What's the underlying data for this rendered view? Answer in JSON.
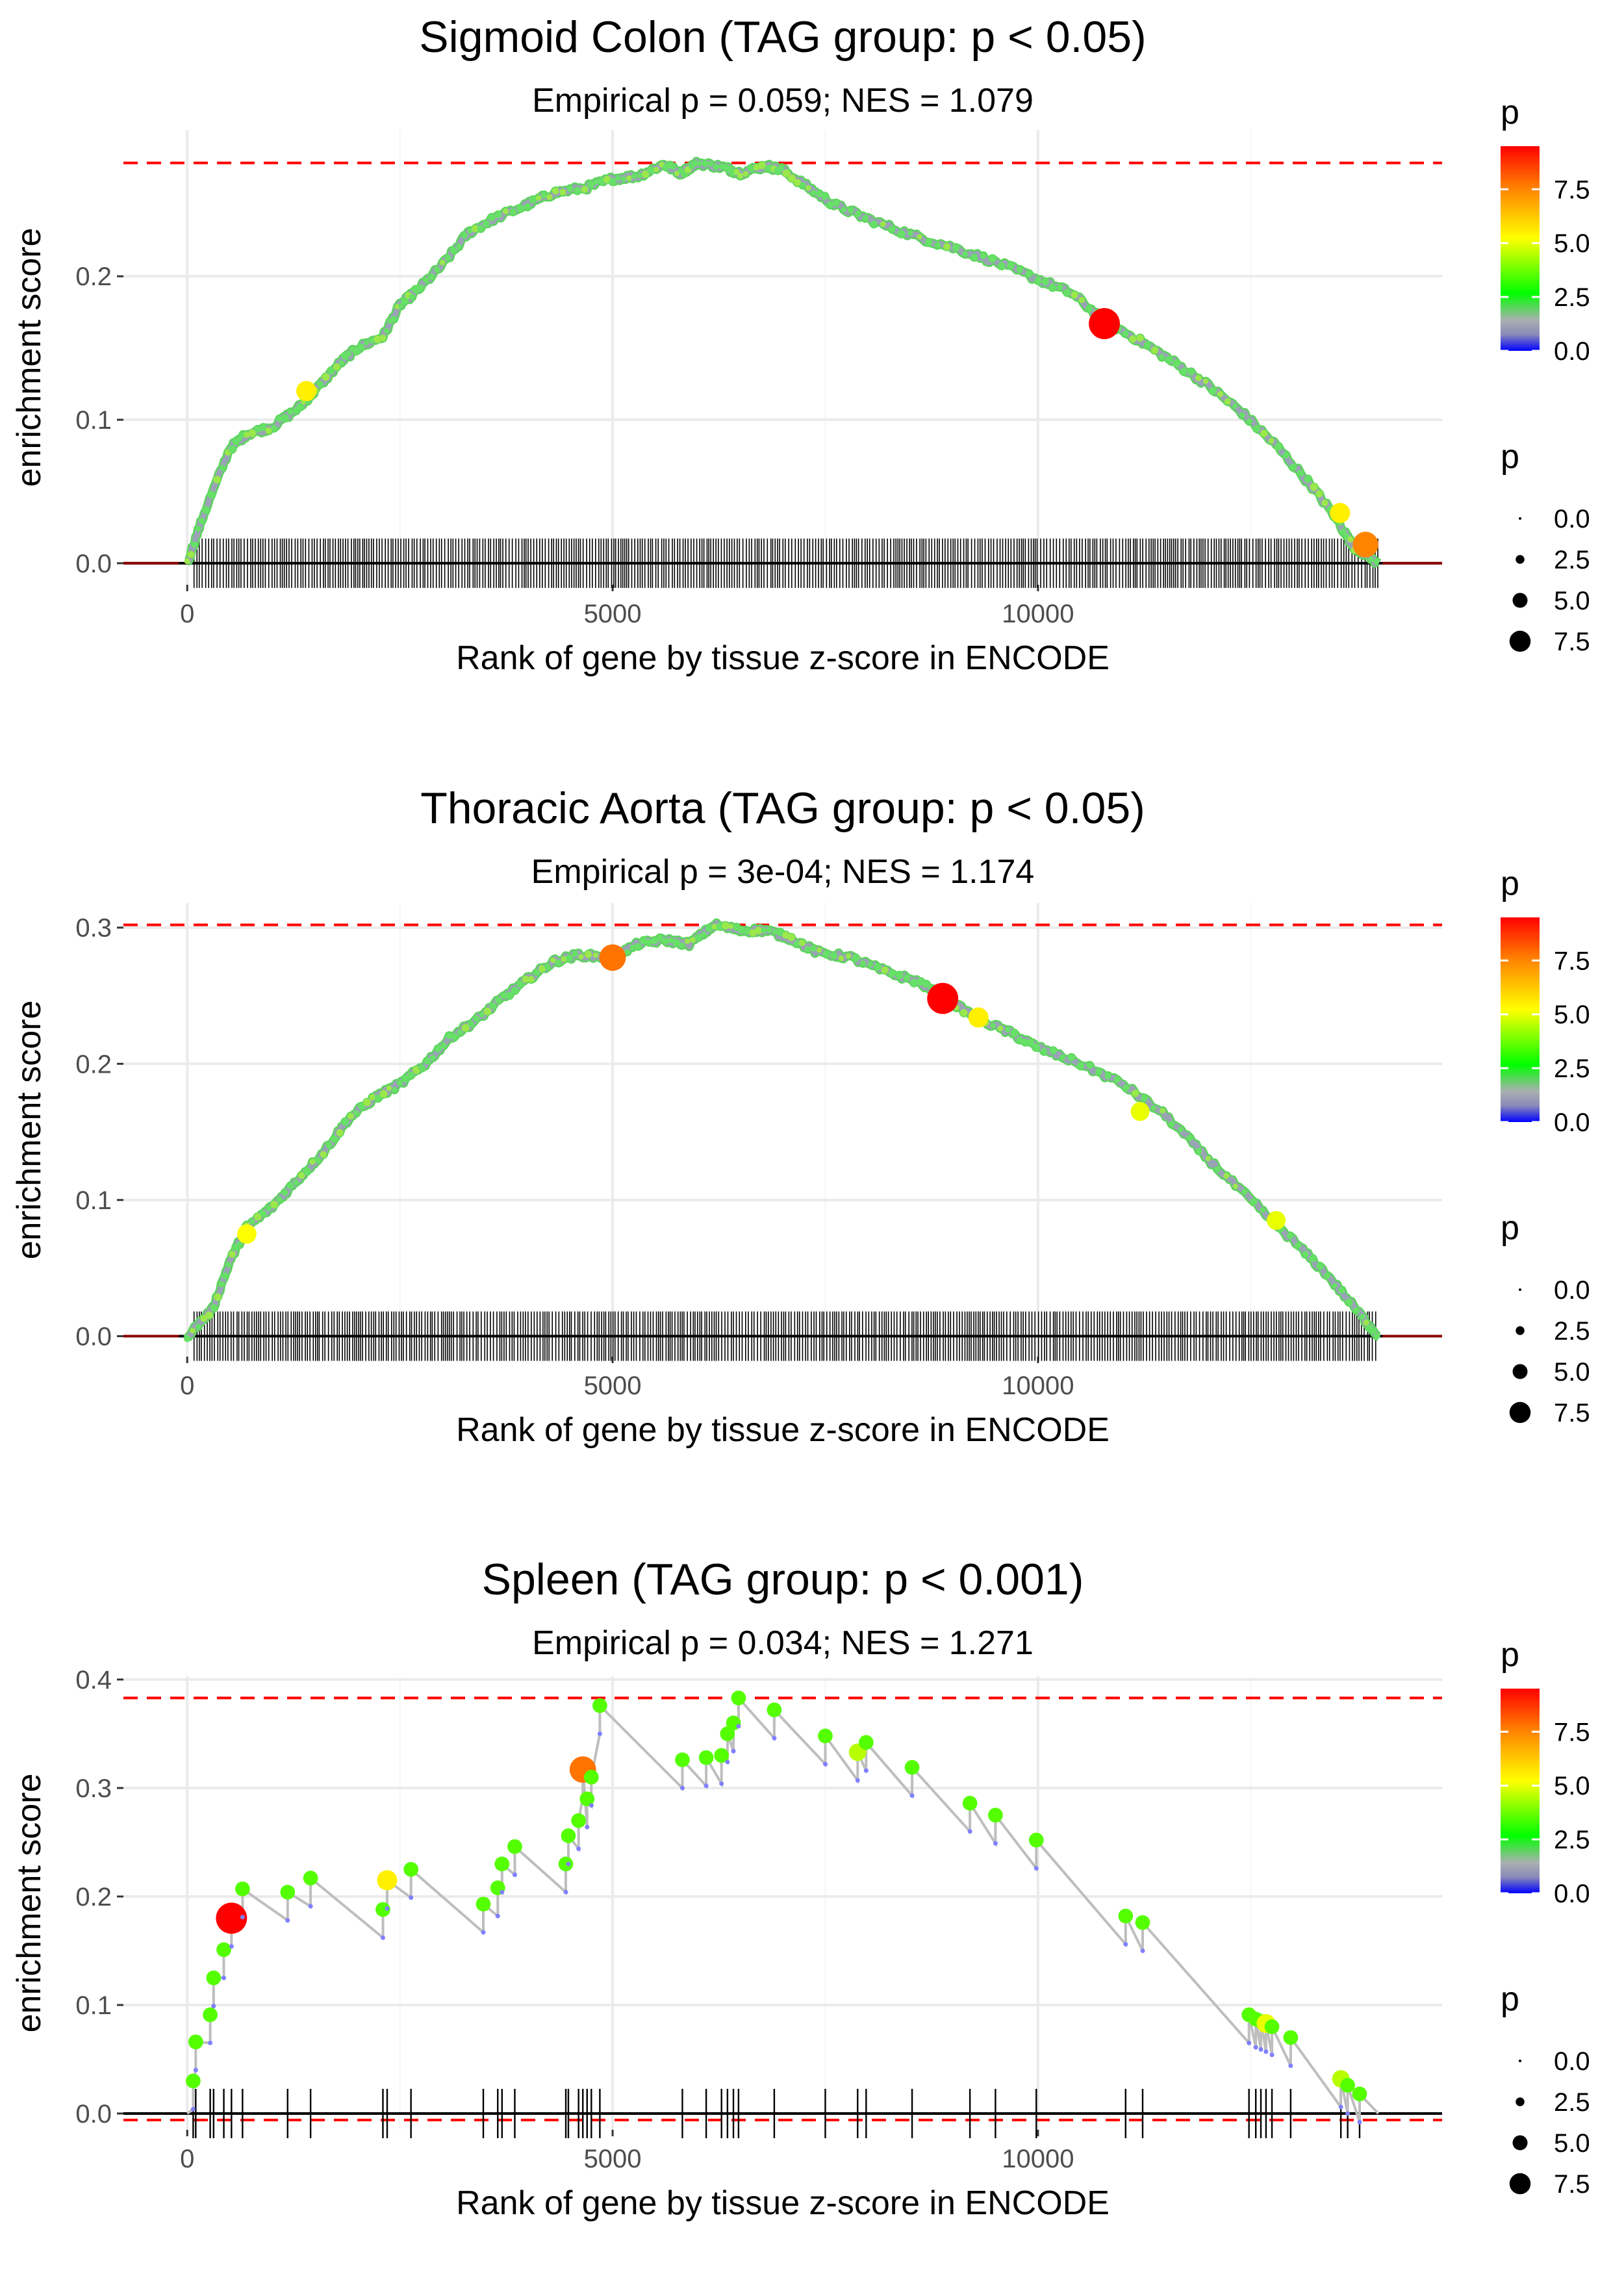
{
  "colors": {
    "max_line": "#ff0000",
    "es_curve": "#bebebe",
    "rug": "#000000",
    "grid": "#ebebeb",
    "gradient": [
      "#0000ff",
      "#8a8ab8",
      "#aab0b0",
      "#00ff00",
      "#ffff00",
      "#ff8000",
      "#ff0000"
    ]
  },
  "chart_data": [
    {
      "type": "line",
      "title": "Sigmoid Colon (TAG group: p < 0.05)",
      "subtitle": "Empirical p = 0.059; NES = 1.079",
      "xlabel": "Rank of gene by tissue z-score in ENCODE",
      "ylabel": "enrichment score",
      "xlim": [
        -750,
        14750
      ],
      "ylim": [
        -0.015,
        0.302
      ],
      "x_ticks": [
        0,
        5000,
        10000
      ],
      "x_tick_labels": [
        "0",
        "5000",
        "10000"
      ],
      "y_ticks": [
        0.0,
        0.1,
        0.2
      ],
      "y_tick_labels": [
        "0.0",
        "0.1",
        "0.2"
      ],
      "max_es": 0.279,
      "min_es": null,
      "n_genes": 14000,
      "dense": true,
      "es_curve": {
        "x": [
          0,
          200,
          500,
          700,
          1000,
          1300,
          1500,
          1800,
          2000,
          2300,
          2500,
          2700,
          3000,
          3300,
          3600,
          4000,
          4300,
          4700,
          5000,
          5300,
          5600,
          5800,
          6000,
          6300,
          6500,
          6800,
          7000,
          7300,
          7600,
          8000,
          8500,
          9000,
          9500,
          10000,
          10400,
          10800,
          11200,
          11600,
          12000,
          12400,
          12800,
          13200,
          13500,
          13700,
          14000
        ],
        "y": [
          0.0,
          0.035,
          0.08,
          0.09,
          0.095,
          0.108,
          0.12,
          0.14,
          0.15,
          0.158,
          0.18,
          0.19,
          0.208,
          0.23,
          0.24,
          0.25,
          0.258,
          0.262,
          0.268,
          0.27,
          0.278,
          0.272,
          0.279,
          0.276,
          0.272,
          0.277,
          0.274,
          0.262,
          0.25,
          0.24,
          0.229,
          0.22,
          0.21,
          0.198,
          0.188,
          0.168,
          0.155,
          0.14,
          0.124,
          0.105,
          0.082,
          0.055,
          0.032,
          0.012,
          0.0
        ]
      },
      "highlight_points": [
        {
          "x": 1400,
          "y": 0.12,
          "p": 5.5
        },
        {
          "x": 10780,
          "y": 0.167,
          "p": 9.5
        },
        {
          "x": 13550,
          "y": 0.035,
          "p": 5.5
        },
        {
          "x": 13850,
          "y": 0.013,
          "p": 7.5
        }
      ]
    },
    {
      "type": "line",
      "title": "Thoracic Aorta (TAG group: p < 0.05)",
      "subtitle": "Empirical p = 3e-04; NES = 1.174",
      "xlabel": "Rank of gene by tissue z-score in ENCODE",
      "ylabel": "enrichment score",
      "xlim": [
        -750,
        14750
      ],
      "ylim": [
        -0.015,
        0.318
      ],
      "x_ticks": [
        0,
        5000,
        10000
      ],
      "x_tick_labels": [
        "0",
        "5000",
        "10000"
      ],
      "y_ticks": [
        0.0,
        0.1,
        0.2,
        0.3
      ],
      "y_tick_labels": [
        "0.0",
        "0.1",
        "0.2",
        "0.3"
      ],
      "max_es": 0.302,
      "min_es": null,
      "n_genes": 14000,
      "dense": true,
      "es_curve": {
        "x": [
          0,
          300,
          500,
          700,
          1000,
          1300,
          1600,
          1900,
          2200,
          2500,
          2800,
          3100,
          3400,
          3700,
          4000,
          4300,
          4600,
          5000,
          5300,
          5600,
          5900,
          6200,
          6500,
          6800,
          7100,
          7400,
          7800,
          8200,
          8600,
          8900,
          9300,
          9700,
          10000,
          10500,
          11000,
          11500,
          12000,
          12500,
          13000,
          13400,
          13800,
          14000
        ],
        "y": [
          0.0,
          0.02,
          0.055,
          0.08,
          0.095,
          0.115,
          0.135,
          0.16,
          0.175,
          0.185,
          0.2,
          0.22,
          0.232,
          0.248,
          0.262,
          0.275,
          0.28,
          0.278,
          0.288,
          0.291,
          0.288,
          0.302,
          0.298,
          0.298,
          0.292,
          0.282,
          0.278,
          0.268,
          0.26,
          0.248,
          0.233,
          0.222,
          0.212,
          0.2,
          0.185,
          0.162,
          0.13,
          0.1,
          0.07,
          0.045,
          0.015,
          0.0
        ]
      },
      "highlight_points": [
        {
          "x": 700,
          "y": 0.075,
          "p": 5.2
        },
        {
          "x": 5000,
          "y": 0.278,
          "p": 7.8
        },
        {
          "x": 8880,
          "y": 0.248,
          "p": 9.5
        },
        {
          "x": 9300,
          "y": 0.234,
          "p": 5.5
        },
        {
          "x": 11200,
          "y": 0.165,
          "p": 5.0
        },
        {
          "x": 12800,
          "y": 0.085,
          "p": 5.0
        }
      ]
    },
    {
      "type": "line",
      "title": "Spleen (TAG group: p < 0.001)",
      "subtitle": "Empirical p = 0.034; NES = 1.271",
      "xlabel": "Rank of gene by tissue z-score in ENCODE",
      "ylabel": "enrichment score",
      "xlim": [
        -750,
        14750
      ],
      "ylim": [
        -0.015,
        0.403
      ],
      "x_ticks": [
        0,
        5000,
        10000
      ],
      "x_tick_labels": [
        "0",
        "5000",
        "10000"
      ],
      "y_ticks": [
        0.0,
        0.1,
        0.2,
        0.3,
        0.4
      ],
      "y_tick_labels": [
        "0.0",
        "0.1",
        "0.2",
        "0.3",
        "0.4"
      ],
      "max_es": 0.383,
      "min_es": -0.006,
      "n_genes": 14000,
      "dense": false,
      "hits": [
        {
          "x": 70,
          "y": 0.03,
          "p": 3.5
        },
        {
          "x": 100,
          "y": 0.066,
          "p": 3.5
        },
        {
          "x": 270,
          "y": 0.091,
          "p": 3.5
        },
        {
          "x": 310,
          "y": 0.125,
          "p": 3.5
        },
        {
          "x": 430,
          "y": 0.151,
          "p": 3.5
        },
        {
          "x": 520,
          "y": 0.18,
          "p": 9.5
        },
        {
          "x": 650,
          "y": 0.207,
          "p": 3.5
        },
        {
          "x": 1180,
          "y": 0.204,
          "p": 3.5
        },
        {
          "x": 1450,
          "y": 0.217,
          "p": 3.5
        },
        {
          "x": 2300,
          "y": 0.188,
          "p": 3.5
        },
        {
          "x": 2350,
          "y": 0.215,
          "p": 5.5
        },
        {
          "x": 2630,
          "y": 0.225,
          "p": 3.5
        },
        {
          "x": 3480,
          "y": 0.193,
          "p": 3.5
        },
        {
          "x": 3650,
          "y": 0.208,
          "p": 3.5
        },
        {
          "x": 3700,
          "y": 0.23,
          "p": 3.5
        },
        {
          "x": 3850,
          "y": 0.246,
          "p": 3.5
        },
        {
          "x": 4450,
          "y": 0.23,
          "p": 3.5
        },
        {
          "x": 4480,
          "y": 0.256,
          "p": 3.5
        },
        {
          "x": 4600,
          "y": 0.27,
          "p": 3.5
        },
        {
          "x": 4650,
          "y": 0.317,
          "p": 7.8
        },
        {
          "x": 4700,
          "y": 0.29,
          "p": 3.5
        },
        {
          "x": 4750,
          "y": 0.31,
          "p": 3.5
        },
        {
          "x": 4850,
          "y": 0.376,
          "p": 3.5
        },
        {
          "x": 5820,
          "y": 0.326,
          "p": 3.5
        },
        {
          "x": 6100,
          "y": 0.328,
          "p": 3.5
        },
        {
          "x": 6280,
          "y": 0.33,
          "p": 3.5
        },
        {
          "x": 6350,
          "y": 0.35,
          "p": 3.5
        },
        {
          "x": 6420,
          "y": 0.36,
          "p": 3.5
        },
        {
          "x": 6480,
          "y": 0.383,
          "p": 3.5
        },
        {
          "x": 6900,
          "y": 0.372,
          "p": 3.5
        },
        {
          "x": 7500,
          "y": 0.348,
          "p": 3.5
        },
        {
          "x": 7880,
          "y": 0.333,
          "p": 4.5
        },
        {
          "x": 7980,
          "y": 0.342,
          "p": 3.5
        },
        {
          "x": 8520,
          "y": 0.319,
          "p": 3.5
        },
        {
          "x": 9200,
          "y": 0.286,
          "p": 3.5
        },
        {
          "x": 9500,
          "y": 0.275,
          "p": 3.5
        },
        {
          "x": 9980,
          "y": 0.252,
          "p": 3.5
        },
        {
          "x": 11030,
          "y": 0.182,
          "p": 3.5
        },
        {
          "x": 11230,
          "y": 0.176,
          "p": 3.5
        },
        {
          "x": 12480,
          "y": 0.091,
          "p": 3.5
        },
        {
          "x": 12560,
          "y": 0.087,
          "p": 3.5
        },
        {
          "x": 12620,
          "y": 0.085,
          "p": 3.5
        },
        {
          "x": 12680,
          "y": 0.083,
          "p": 5.0
        },
        {
          "x": 12750,
          "y": 0.08,
          "p": 3.5
        },
        {
          "x": 12970,
          "y": 0.07,
          "p": 3.5
        },
        {
          "x": 13560,
          "y": 0.032,
          "p": 4.5
        },
        {
          "x": 13640,
          "y": 0.026,
          "p": 3.5
        },
        {
          "x": 13780,
          "y": 0.018,
          "p": 3.5
        }
      ]
    }
  ],
  "legends": [
    {
      "color_title": "p",
      "color_ticks": [
        "7.5",
        "5.0",
        "2.5",
        "0.0"
      ],
      "size_title": "p",
      "size_labels": [
        "0.0",
        "2.5",
        "5.0",
        "7.5"
      ]
    },
    {
      "color_title": "p",
      "color_ticks": [
        "7.5",
        "5.0",
        "2.5",
        "0.0"
      ],
      "size_title": "p",
      "size_labels": [
        "0.0",
        "2.5",
        "5.0",
        "7.5"
      ]
    },
    {
      "color_title": "p",
      "color_ticks": [
        "7.5",
        "5.0",
        "2.5",
        "0.0"
      ],
      "size_title": "p",
      "size_labels": [
        "0.0",
        "2.5",
        "5.0",
        "7.5"
      ]
    }
  ]
}
